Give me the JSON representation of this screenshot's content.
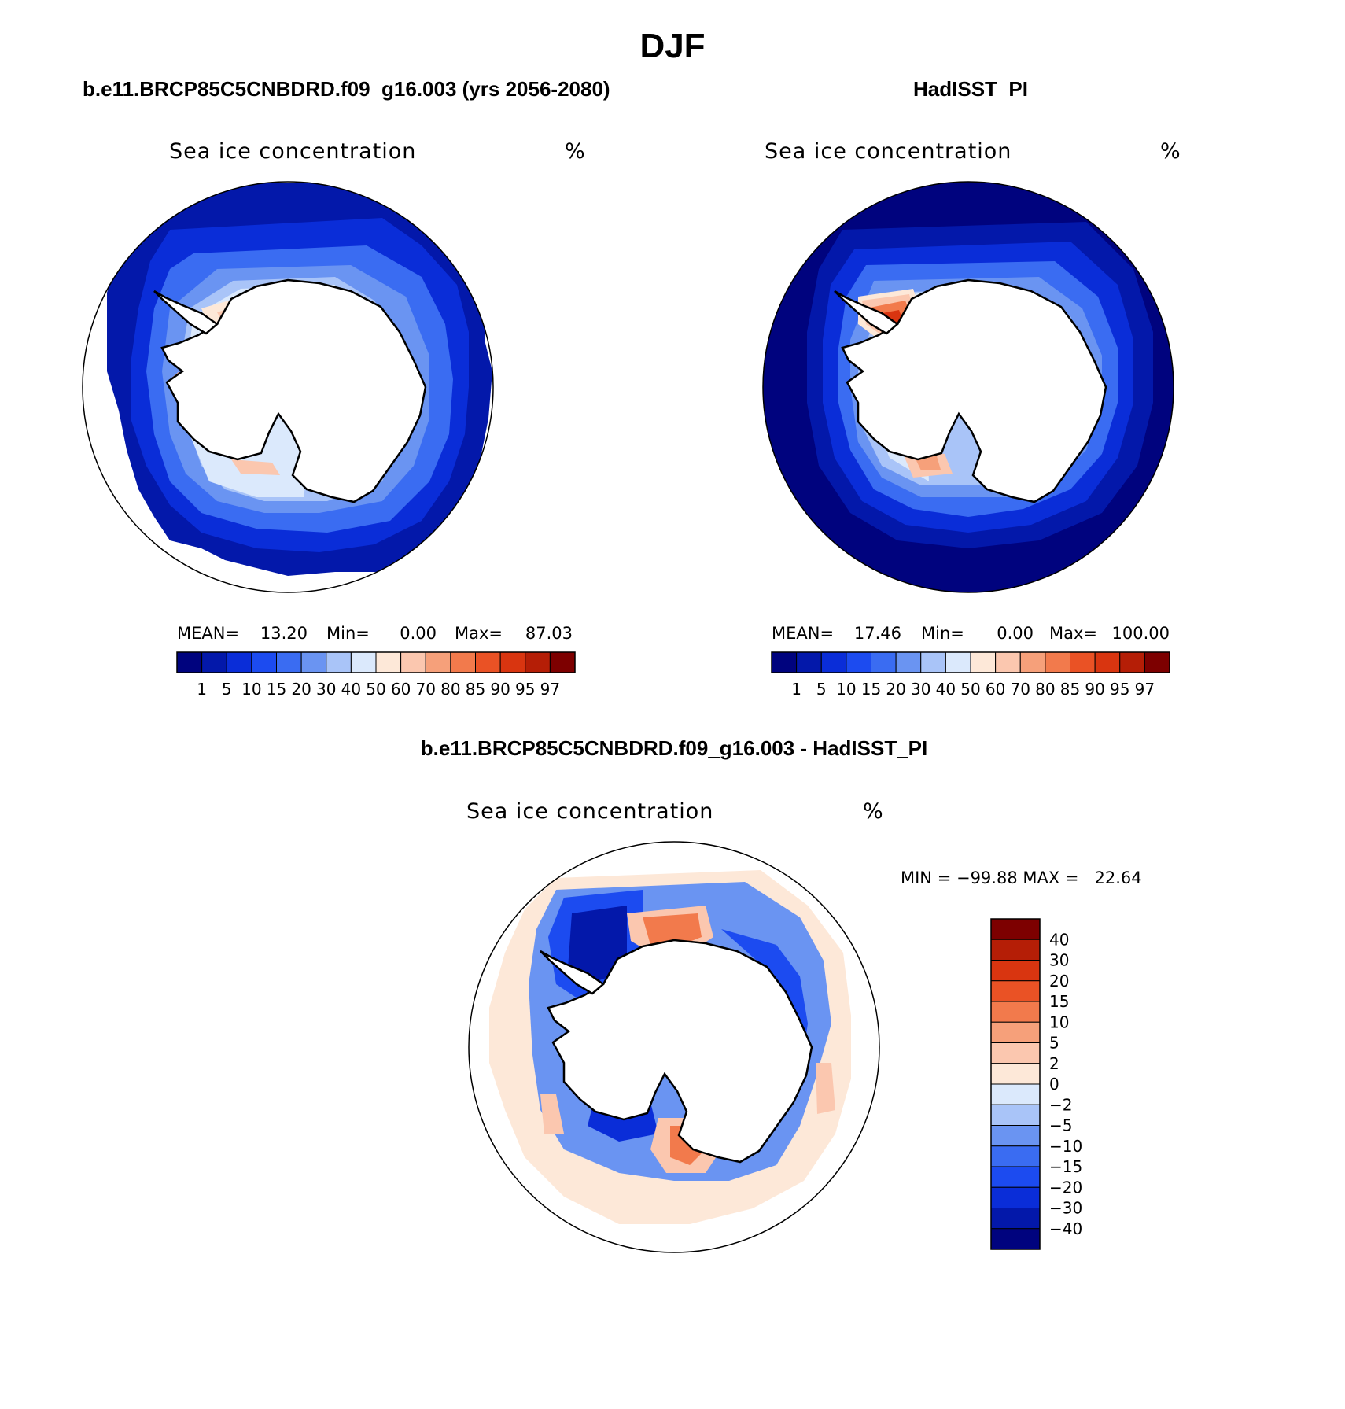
{
  "figure": {
    "title": "DJF",
    "panel_titles": [
      "b.e11.BRCP85C5CNBDRD.f09_g16.003 (yrs 2056-2080)",
      "HadISST_PI",
      "b.e11.BRCP85C5CNBDRD.f09_g16.003 - HadISST_PI"
    ]
  },
  "colors": {
    "abs_palette": [
      "#00037e",
      "#0318aa",
      "#0a2dd8",
      "#1c4bf0",
      "#3a6cf2",
      "#6a94f2",
      "#a9c4f8",
      "#dbe9fc",
      "#fde8d8",
      "#fbc7af",
      "#f6a07a",
      "#f27a4c",
      "#ea5225",
      "#d93510",
      "#b51e06",
      "#7d0000"
    ],
    "diff_palette": [
      "#00037e",
      "#0318aa",
      "#0a2dd8",
      "#1c4bf0",
      "#3a6cf2",
      "#6a94f2",
      "#a9c4f8",
      "#dbe9fc",
      "#fde8d8",
      "#fbc7af",
      "#f6a07a",
      "#f27a4c",
      "#ea5225",
      "#d93510",
      "#b51e06",
      "#7d0000"
    ]
  },
  "chart_data": [
    {
      "type": "heatmap",
      "projection": "south-polar-stereographic",
      "title": "b.e11.BRCP85C5CNBDRD.f09_g16.003 (yrs 2056-2080)",
      "variable": "Sea ice concentration",
      "units": "%",
      "stats": {
        "mean_label": "MEAN=",
        "mean": "13.20",
        "min_label": "Min=",
        "min": "0.00",
        "max_label": "Max=",
        "max": "87.03"
      },
      "colorbar": {
        "orientation": "horizontal",
        "levels": [
          "1",
          "5",
          "10",
          "15",
          "20",
          "30",
          "40",
          "50",
          "60",
          "70",
          "80",
          "85",
          "90",
          "95",
          "97"
        ]
      }
    },
    {
      "type": "heatmap",
      "projection": "south-polar-stereographic",
      "title": "HadISST_PI",
      "variable": "Sea ice concentration",
      "units": "%",
      "stats": {
        "mean_label": "MEAN=",
        "mean": "17.46",
        "min_label": "Min=",
        "min": "0.00",
        "max_label": "Max=",
        "max": "100.00"
      },
      "colorbar": {
        "orientation": "horizontal",
        "levels": [
          "1",
          "5",
          "10",
          "15",
          "20",
          "30",
          "40",
          "50",
          "60",
          "70",
          "80",
          "85",
          "90",
          "95",
          "97"
        ]
      }
    },
    {
      "type": "heatmap",
      "projection": "south-polar-stereographic",
      "title": "b.e11.BRCP85C5CNBDRD.f09_g16.003 - HadISST_PI",
      "variable": "Sea ice concentration",
      "units": "%",
      "stats": {
        "text": "MIN = −99.88 MAX =   22.64"
      },
      "colorbar": {
        "orientation": "vertical",
        "levels": [
          "40",
          "30",
          "20",
          "15",
          "10",
          "5",
          "2",
          "0",
          "−2",
          "−5",
          "−10",
          "−15",
          "−20",
          "−30",
          "−40"
        ]
      }
    }
  ]
}
